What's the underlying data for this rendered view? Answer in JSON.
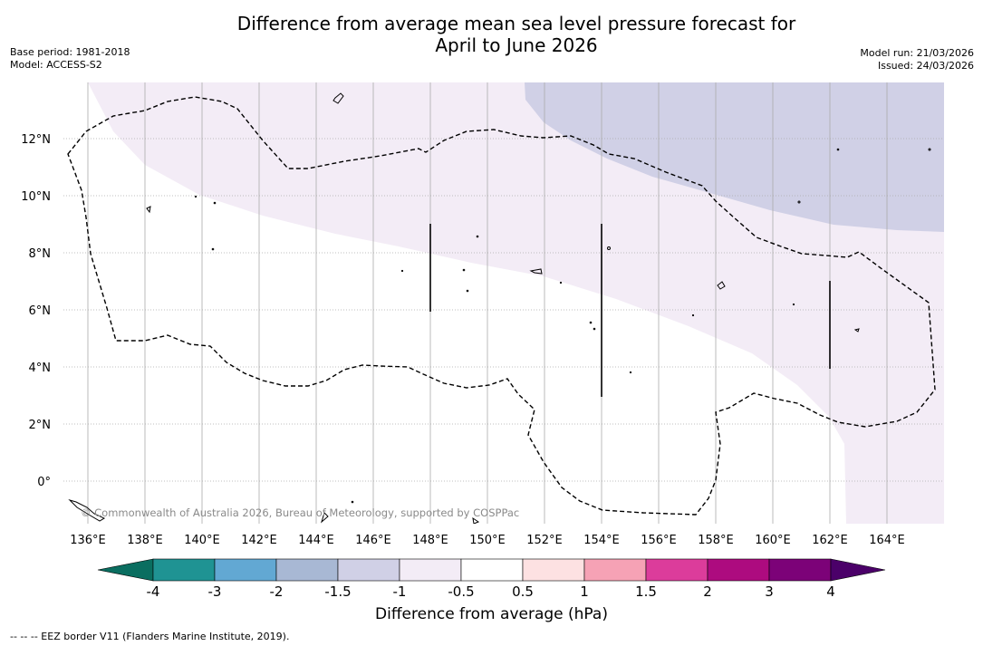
{
  "title": {
    "line1": "Difference from average mean sea level pressure forecast for",
    "line2": "April to June 2026"
  },
  "meta": {
    "base_period": "Base period: 1981-2018",
    "model": "Model: ACCESS-S2",
    "model_run": "Model run: 21/03/2026",
    "issued": "Issued: 24/03/2026"
  },
  "axes": {
    "x_ticks": [
      "136°E",
      "138°E",
      "140°E",
      "142°E",
      "144°E",
      "146°E",
      "148°E",
      "150°E",
      "152°E",
      "154°E",
      "156°E",
      "158°E",
      "160°E",
      "162°E",
      "164°E"
    ],
    "x_values": [
      136,
      138,
      140,
      142,
      144,
      146,
      148,
      150,
      152,
      154,
      156,
      158,
      160,
      162,
      164
    ],
    "y_ticks": [
      "0°",
      "2°N",
      "4°N",
      "6°N",
      "8°N",
      "10°N",
      "12°N"
    ],
    "y_values": [
      0,
      2,
      4,
      6,
      8,
      10,
      12
    ],
    "lon_range": [
      135.0,
      165.0
    ],
    "lat_range": [
      -1.5,
      14.0
    ]
  },
  "copyright": "© Commonwealth of Australia 2026, Bureau of Meteorology, supported by COSPPac",
  "colorbar": {
    "title": "Difference from average (hPa)",
    "labels": [
      "-4",
      "-3",
      "-2",
      "-1.5",
      "-1",
      "-0.5",
      "0.5",
      "1",
      "1.5",
      "2",
      "3",
      "4"
    ],
    "colors": [
      "#1f9393",
      "#62a8d3",
      "#a8b8d4",
      "#d0d0e6",
      "#f3ecf6",
      "#ffffff",
      "#fde1e2",
      "#f6a2b5",
      "#dc3c9b",
      "#ad0b7f",
      "#7c0278"
    ],
    "under_color": "#0a6e60",
    "over_color": "#4b0069"
  },
  "footnote": "--  --  -- EEZ border V11 (Flanders Marine Institute, 2019).",
  "colors": {
    "positive_region": "#f3ecf6",
    "negative_region": "#d0d0e6",
    "gridline": "#aaaaaa"
  }
}
